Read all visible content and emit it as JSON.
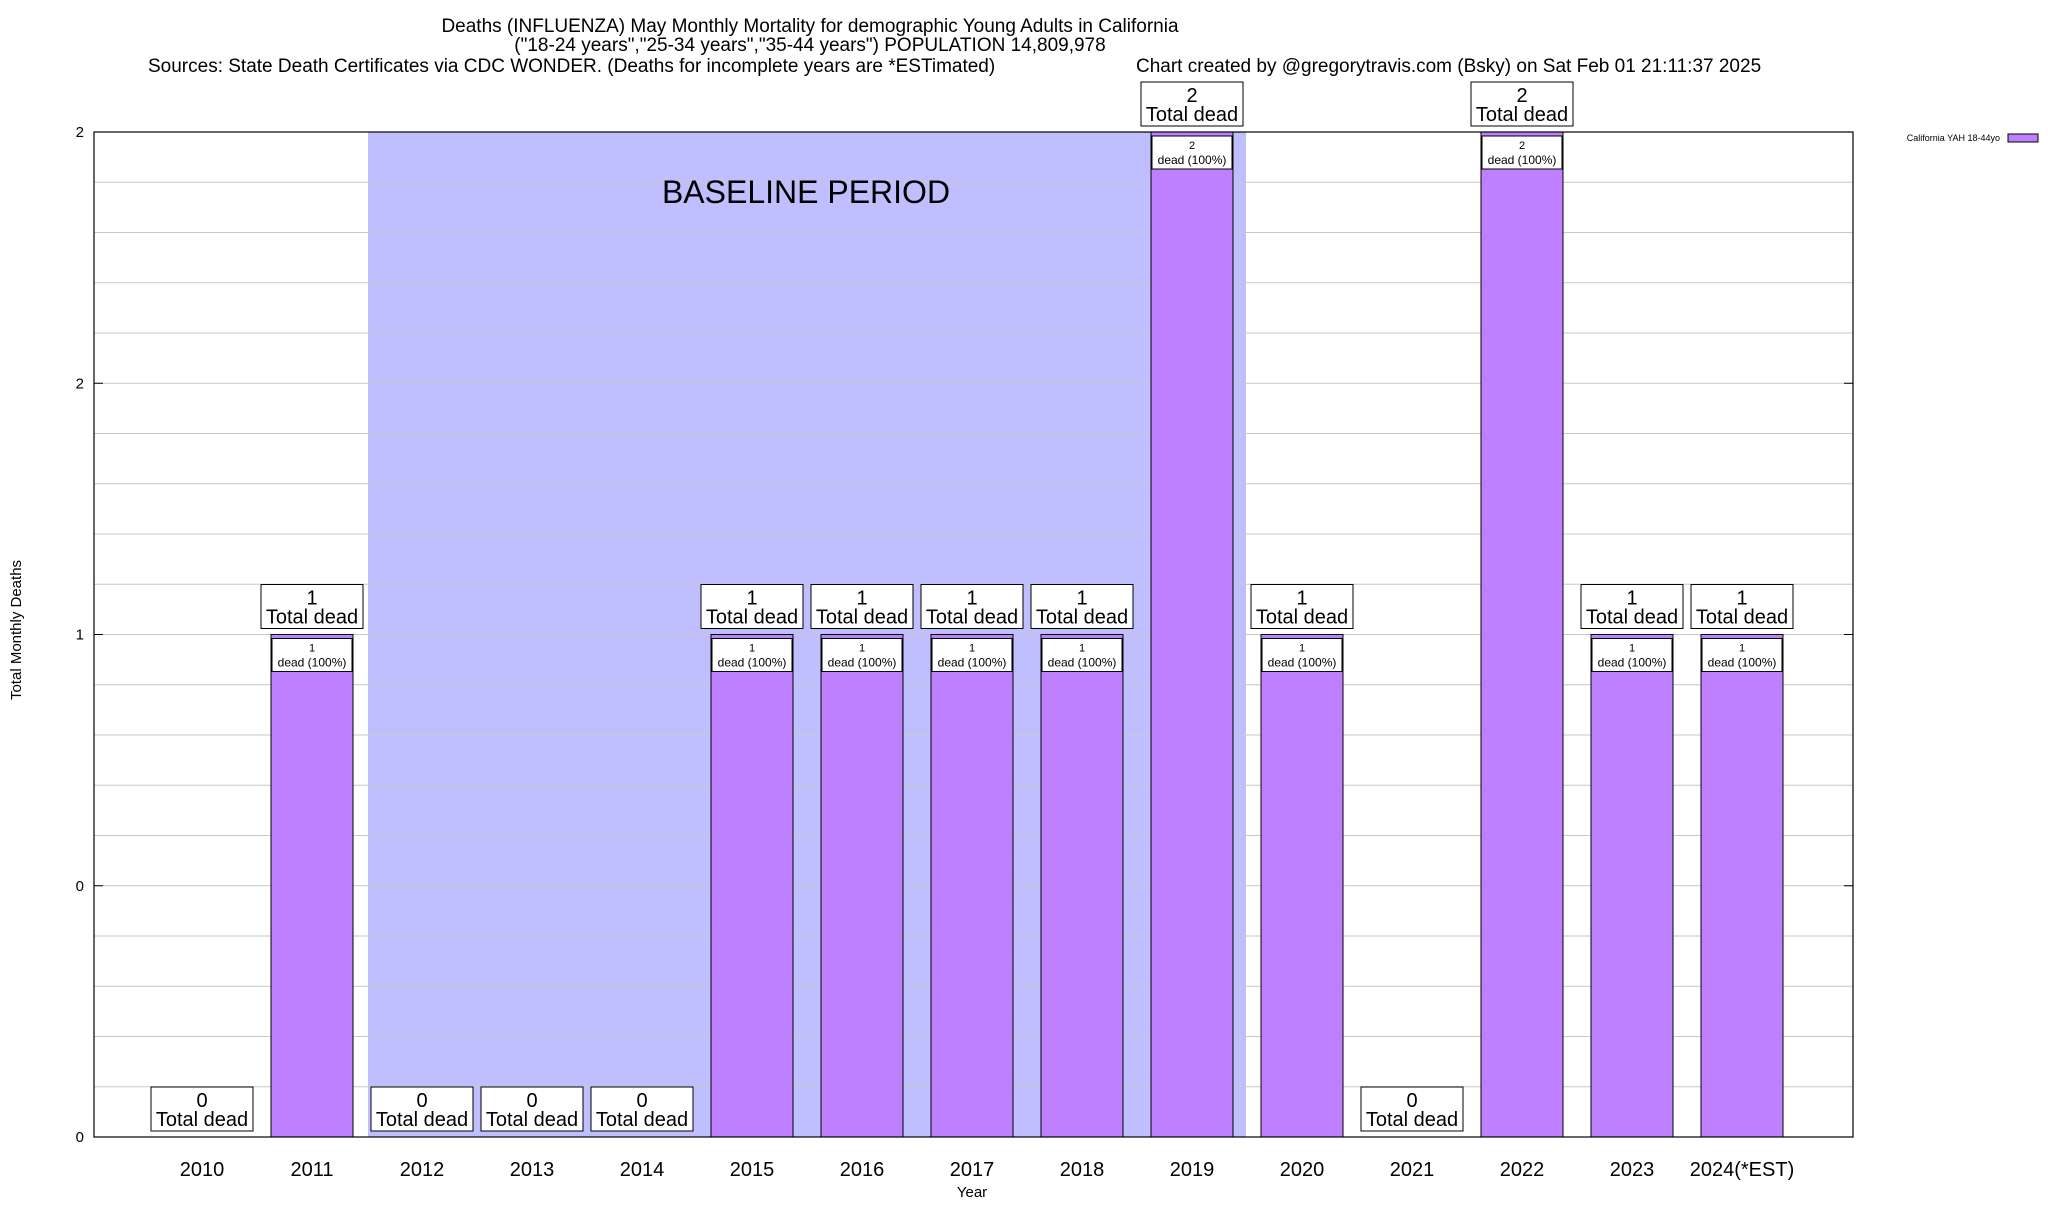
{
  "chart_data": {
    "type": "bar",
    "title_lines": [
      "Deaths (INFLUENZA) May Monthly Mortality for demographic Young Adults in California",
      "(\"18-24 years\",\"25-34 years\",\"35-44 years\") POPULATION 14,809,978"
    ],
    "sources": "Sources: State Death Certificates via CDC WONDER. (Deaths for incomplete years are *ESTimated)",
    "credit": "Chart created by @gregorytravis.com (Bsky) on Sat Feb 01 21:11:37 2025",
    "xlabel": "Year",
    "ylabel": "Total Monthly Deaths",
    "categories": [
      "2010",
      "2011",
      "2012",
      "2013",
      "2014",
      "2015",
      "2016",
      "2017",
      "2018",
      "2019",
      "2020",
      "2021",
      "2022",
      "2023",
      "2024(*EST)"
    ],
    "series": [
      {
        "name": "California YAH 18-44yo",
        "values": [
          0,
          1,
          0,
          0,
          0,
          1,
          1,
          1,
          1,
          2,
          1,
          0,
          2,
          1,
          1
        ],
        "color": "#bf80ff"
      }
    ],
    "ylim": [
      0,
      2
    ],
    "yticks": [
      {
        "value": 0,
        "label": "0"
      },
      {
        "value": 0.5,
        "label": "0"
      },
      {
        "value": 1,
        "label": "1"
      },
      {
        "value": 1.5,
        "label": "2"
      },
      {
        "value": 2,
        "label": "2"
      }
    ],
    "grid": true,
    "legend_position": "top-right",
    "total_label_text": "Total dead",
    "bar_label_text": "dead (100%)",
    "baseline": {
      "label": "BASELINE PERIOD",
      "start_category": "2012",
      "end_category": "2019",
      "color": "#bfbfff"
    },
    "colors": {
      "bar_fill": "#bf80ff",
      "baseline_fill": "#bfbfff",
      "grid": "#c8c8c8",
      "axis": "#000000"
    }
  }
}
